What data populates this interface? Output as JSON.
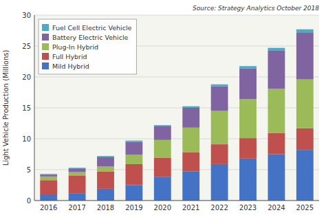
{
  "chart_data": {
    "type": "bar",
    "stacked": true,
    "ylabel": "Light Vehicle Production (Millions)",
    "annotation": "Source: Strategy Analytics October 2018",
    "categories": [
      "2016",
      "2017",
      "2018",
      "2019",
      "2020",
      "2021",
      "2022",
      "2023",
      "2024",
      "2025"
    ],
    "series": [
      {
        "name": "Mild Hybrid",
        "color": "#4472C4",
        "values": [
          1.0,
          1.2,
          1.9,
          2.5,
          3.8,
          4.7,
          5.9,
          6.8,
          7.5,
          8.2
        ]
      },
      {
        "name": "Full Hybrid",
        "color": "#C0504D",
        "values": [
          2.3,
          2.8,
          2.8,
          3.4,
          3.1,
          3.1,
          3.2,
          3.3,
          3.4,
          3.5
        ]
      },
      {
        "name": "Plug-In Hybrid",
        "color": "#9BBB59",
        "values": [
          0.6,
          0.6,
          0.8,
          1.5,
          2.9,
          4.0,
          5.4,
          6.3,
          7.2,
          7.9
        ]
      },
      {
        "name": "Battery Electric Vehicle",
        "color": "#8064A2",
        "values": [
          0.3,
          0.6,
          1.5,
          2.1,
          2.2,
          3.2,
          4.0,
          5.0,
          6.2,
          7.6
        ]
      },
      {
        "name": "Fuel Cell Electric Vehicle",
        "color": "#4BACC6",
        "values": [
          0.1,
          0.1,
          0.2,
          0.2,
          0.2,
          0.25,
          0.3,
          0.35,
          0.4,
          0.5
        ]
      }
    ],
    "ylim": [
      0,
      30
    ],
    "yticks": [
      0,
      5,
      10,
      15,
      20,
      25,
      30
    ],
    "grid": true,
    "legend": "upper left"
  }
}
